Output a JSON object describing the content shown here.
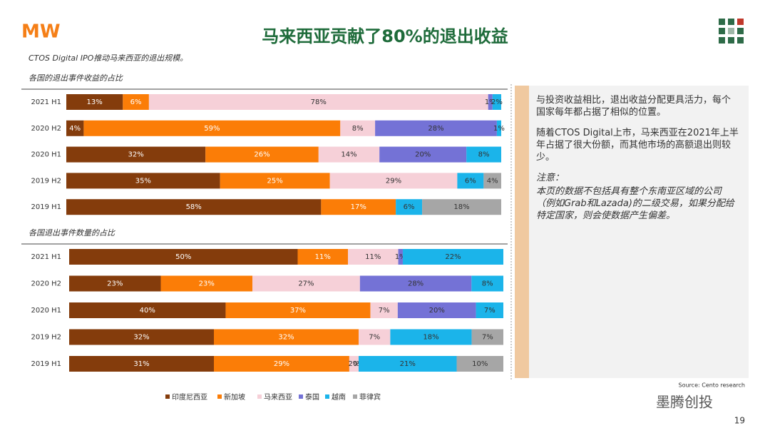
{
  "header": {
    "logo": "MW",
    "title": "马来西亚贡献了80%的退出收益",
    "subtitle": "CTOS Digital IPO推动马来西亚的退出规模。"
  },
  "chart_data": [
    {
      "type": "bar",
      "stacked": "percent",
      "title": "各国的退出事件收益的占比",
      "categories": [
        "2021 H1",
        "2020 H2",
        "2020 H1",
        "2019 H2",
        "2019 H1"
      ],
      "series": [
        {
          "name": "印度尼西亚",
          "color": "#843c0c",
          "values": [
            13,
            4,
            32,
            35,
            58
          ],
          "value_labels": [
            "13%",
            "4%",
            "32%",
            "35%",
            "58%"
          ]
        },
        {
          "name": "新加坡",
          "color": "#fb7d07",
          "values": [
            6,
            59,
            26,
            25,
            17
          ],
          "value_labels": [
            "6%",
            "59%",
            "26%",
            "25%",
            "17%"
          ]
        },
        {
          "name": "马来西亚",
          "color": "#f6d0d8",
          "values": [
            78,
            8,
            14,
            29,
            null
          ],
          "value_labels": [
            "78%",
            "8%",
            "14%",
            "29%",
            null
          ]
        },
        {
          "name": "泰国",
          "color": "#7472d6",
          "values": [
            1,
            28,
            20,
            null,
            null
          ],
          "value_labels": [
            "1%",
            "28%",
            "20%",
            null,
            null
          ]
        },
        {
          "name": "越南",
          "color": "#1bb4ea",
          "values": [
            2,
            1,
            8,
            6,
            6
          ],
          "value_labels": [
            "2%",
            "1%",
            "8%",
            "6%",
            "6%"
          ]
        },
        {
          "name": "菲律宾",
          "color": "#a6a6a6",
          "values": [
            null,
            null,
            null,
            4,
            18
          ],
          "value_labels": [
            null,
            null,
            null,
            "4%",
            "18%"
          ]
        }
      ]
    },
    {
      "type": "bar",
      "stacked": "percent",
      "title": "各国退出事件数量的占比",
      "categories": [
        "2021 H1",
        "2020 H2",
        "2020 H1",
        "2019 H2",
        "2019 H1"
      ],
      "series": [
        {
          "values": [
            50,
            23,
            40,
            32,
            31
          ],
          "value_labels": [
            "50%",
            "23%",
            "40%",
            "32%",
            "31%"
          ]
        },
        {
          "values": [
            11,
            23,
            37,
            32,
            29
          ],
          "value_labels": [
            "11%",
            "23%",
            "37%",
            "32%",
            "29%"
          ]
        },
        {
          "values": [
            11,
            27,
            7,
            7,
            2
          ],
          "value_labels": [
            "11%",
            "27%",
            "7%",
            "7%",
            "2%"
          ]
        },
        {
          "values": [
            1,
            28,
            20,
            null,
            0
          ],
          "value_labels": [
            "1%",
            "28%",
            "20%",
            null,
            "0%"
          ]
        },
        {
          "values": [
            22,
            8,
            7,
            18,
            21
          ],
          "value_labels": [
            "22%",
            "8%",
            "7%",
            "18%",
            "21%"
          ]
        },
        {
          "values": [
            null,
            null,
            null,
            7,
            10
          ],
          "value_labels": [
            null,
            null,
            null,
            "7%",
            "10%"
          ]
        }
      ]
    }
  ],
  "sidebar": {
    "paragraphs": [
      "与投资收益相比，退出收益分配更具活力，每个国家每年都占据了相似的位置。",
      "随着CTOS Digital上市，马来西亚在2021年上半年占据了很大份额，而其他市场的高额退出则较少。"
    ],
    "note_label": "注意：",
    "note": "本页的数据不包括具有整个东南亚区域的公司（例如Grab和Lazada)的二级交易，如果分配给特定国家，则会使数据产生偏差。"
  },
  "footer": {
    "source": "Source: Cento research",
    "watermark": "墨腾创投",
    "page": "19"
  }
}
